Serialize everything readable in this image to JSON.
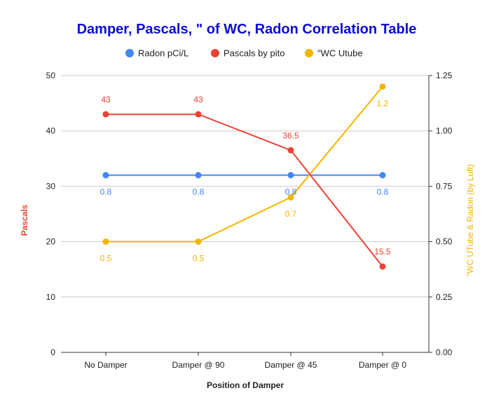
{
  "chart_data": {
    "type": "line",
    "title": "Damper, Pascals, \" of WC, Radon Correlation Table",
    "title_color": "#0a0ad6",
    "xlabel": "Position of Damper",
    "ylabel_left": "Pascals",
    "ylabel_right": "\"WC UTube & Radon (by Luft)",
    "categories": [
      "No Damper",
      "Damper @ 90",
      "Damper @ 45",
      "Damper @ 0"
    ],
    "left_axis": {
      "min": 0,
      "max": 50,
      "ticks": [
        "0",
        "10",
        "20",
        "30",
        "40",
        "50"
      ]
    },
    "right_axis": {
      "min": 0,
      "max": 1.25,
      "ticks": [
        "0.00",
        "0.25",
        "0.50",
        "0.75",
        "1.00",
        "1.25"
      ]
    },
    "grid": true,
    "legend_position": "top",
    "series": [
      {
        "name": "Radon pCi/L",
        "axis": "right",
        "color": "#4285f4",
        "values": [
          0.8,
          0.8,
          0.8,
          0.8
        ],
        "labels": [
          "0.8",
          "0.8",
          "0.8",
          "0.8"
        ],
        "label_position": "below"
      },
      {
        "name": "Pascals by pito",
        "axis": "left",
        "color": "#ea4335",
        "values": [
          43,
          43,
          36.5,
          15.5
        ],
        "labels": [
          "43",
          "43",
          "36.5",
          "15.5"
        ],
        "label_position": "above"
      },
      {
        "name": "\"WC Utube",
        "axis": "right",
        "color": "#f4b400",
        "values": [
          0.5,
          0.5,
          0.7,
          1.2
        ],
        "labels": [
          "0.5",
          "0.5",
          "0.7",
          "1.2"
        ],
        "label_position": "below"
      }
    ]
  }
}
